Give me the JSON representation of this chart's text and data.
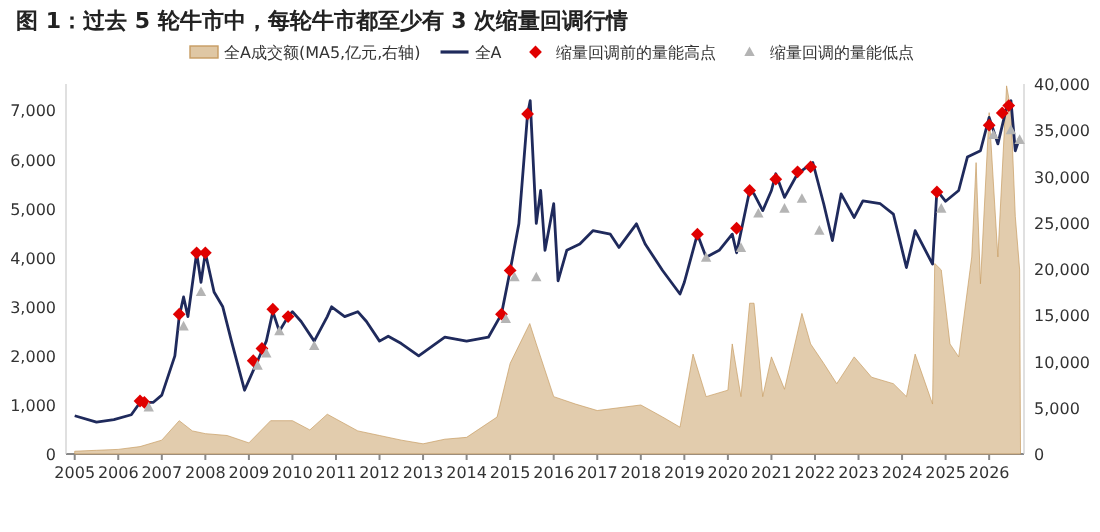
{
  "chart_data": {
    "type": "line",
    "title": "图 1：过去 5 轮牛市中，每轮牛市都至少有 3 次缩量回调行情",
    "legend": "top",
    "xlim": [
      2004.8,
      2026.8
    ],
    "xticks": [
      2005,
      2006,
      2007,
      2008,
      2009,
      2010,
      2011,
      2012,
      2013,
      2014,
      2015,
      2016,
      2017,
      2018,
      2019,
      2020,
      2021,
      2022,
      2023,
      2024,
      2025,
      2026
    ],
    "ylim": [
      0,
      7540
    ],
    "yticks": [
      0,
      {
        "value": 1000,
        "label": "1,000"
      },
      {
        "value": 2000,
        "label": "2,000"
      },
      {
        "value": 3000,
        "label": "3,000"
      },
      {
        "value": 4000,
        "label": "4,000"
      },
      {
        "value": 5000,
        "label": "5,000"
      },
      {
        "value": 6000,
        "label": "6,000"
      },
      {
        "value": 7000,
        "label": "7,000"
      }
    ],
    "y2lim": [
      0,
      40000
    ],
    "y2ticks": [
      0,
      {
        "value": 5000,
        "label": "5,000"
      },
      {
        "value": 10000,
        "label": "10,000"
      },
      {
        "value": 15000,
        "label": "15,000"
      },
      {
        "value": 20000,
        "label": "20,000"
      },
      {
        "value": 25000,
        "label": "25,000"
      },
      {
        "value": 30000,
        "label": "30,000"
      },
      {
        "value": 35000,
        "label": "35,000"
      },
      {
        "value": 40000,
        "label": "40,000"
      }
    ],
    "series": [
      {
        "name": "全A成交额(MA5,亿元,右轴)",
        "type": "area",
        "axis": "y2",
        "color": "#dfc7a4",
        "x": [
          2005.0,
          2005.5,
          2006.0,
          2006.5,
          2007.0,
          2007.4,
          2007.7,
          2008.0,
          2008.5,
          2009.0,
          2009.5,
          2010.0,
          2010.4,
          2010.8,
          2011.5,
          2012.0,
          2012.5,
          2013.0,
          2013.5,
          2014.0,
          2014.7,
          2015.0,
          2015.45,
          2015.6,
          2016.0,
          2016.5,
          2017.0,
          2017.5,
          2018.0,
          2018.5,
          2018.9,
          2019.2,
          2019.5,
          2020.0,
          2020.1,
          2020.3,
          2020.5,
          2020.6,
          2020.8,
          2021.0,
          2021.3,
          2021.7,
          2021.9,
          2022.2,
          2022.5,
          2022.9,
          2023.3,
          2023.8,
          2024.1,
          2024.3,
          2024.7,
          2024.75,
          2024.9,
          2025.1,
          2025.3,
          2025.6,
          2025.7,
          2025.8,
          2026.0,
          2026.2,
          2026.4,
          2026.5,
          2026.6,
          2026.7,
          2026.72
        ],
        "values": [
          300,
          400,
          500,
          800,
          1500,
          3600,
          2500,
          2200,
          2000,
          1200,
          3600,
          3600,
          2600,
          4300,
          2500,
          2000,
          1500,
          1100,
          1600,
          1800,
          4000,
          9800,
          14100,
          11900,
          6200,
          5400,
          4700,
          5000,
          5300,
          4000,
          2900,
          10800,
          6200,
          6900,
          11900,
          6200,
          16300,
          16300,
          6200,
          10500,
          7000,
          15200,
          11900,
          9800,
          7600,
          10500,
          8300,
          7600,
          6200,
          10800,
          5400,
          20600,
          19900,
          11900,
          10500,
          21300,
          31500,
          18400,
          36900,
          21300,
          39800,
          37200,
          25700,
          19900,
          0
        ]
      },
      {
        "name": "全A",
        "type": "line",
        "color": "#1f2a5c",
        "x": [
          2005.0,
          2005.5,
          2005.9,
          2006.3,
          2006.5,
          2006.8,
          2007.0,
          2007.3,
          2007.4,
          2007.5,
          2007.6,
          2007.8,
          2007.9,
          2008.0,
          2008.2,
          2008.4,
          2008.6,
          2008.9,
          2009.0,
          2009.2,
          2009.4,
          2009.55,
          2009.7,
          2009.9,
          2010.0,
          2010.2,
          2010.5,
          2010.8,
          2010.9,
          2011.2,
          2011.5,
          2011.7,
          2012.0,
          2012.2,
          2012.5,
          2012.9,
          2013.5,
          2014.0,
          2014.5,
          2014.8,
          2015.0,
          2015.2,
          2015.4,
          2015.46,
          2015.6,
          2015.7,
          2015.8,
          2016.0,
          2016.1,
          2016.3,
          2016.6,
          2016.9,
          2017.3,
          2017.5,
          2017.9,
          2018.1,
          2018.5,
          2018.9,
          2019.0,
          2019.3,
          2019.5,
          2019.8,
          2020.1,
          2020.2,
          2020.5,
          2020.6,
          2020.8,
          2021.0,
          2021.1,
          2021.3,
          2021.6,
          2021.8,
          2021.95,
          2022.2,
          2022.4,
          2022.6,
          2022.9,
          2023.1,
          2023.5,
          2023.8,
          2024.1,
          2024.3,
          2024.7,
          2024.8,
          2025.0,
          2025.3,
          2025.5,
          2025.8,
          2026.0,
          2026.2,
          2026.4,
          2026.5,
          2026.6,
          2026.7
        ],
        "values": [
          780,
          650,
          700,
          800,
          1050,
          1050,
          1200,
          2000,
          2800,
          3200,
          2800,
          4100,
          3500,
          4100,
          3300,
          3000,
          2300,
          1300,
          1500,
          1900,
          2300,
          2900,
          2500,
          2800,
          2900,
          2700,
          2300,
          2800,
          3000,
          2800,
          2900,
          2700,
          2300,
          2400,
          2250,
          2000,
          2380,
          2300,
          2380,
          2850,
          3740,
          4690,
          6930,
          7200,
          4700,
          5370,
          4150,
          5100,
          3530,
          4150,
          4280,
          4550,
          4480,
          4210,
          4690,
          4280,
          3740,
          3260,
          3500,
          4480,
          4010,
          4150,
          4480,
          4100,
          5370,
          5300,
          4960,
          5370,
          5710,
          5230,
          5710,
          5840,
          5940,
          5100,
          4350,
          5300,
          4820,
          5160,
          5100,
          4890,
          3800,
          4550,
          3870,
          5370,
          5150,
          5370,
          6050,
          6180,
          6860,
          6320,
          7060,
          7200,
          6180,
          6450
        ]
      },
      {
        "name": "缩量回调前的量能高点",
        "type": "scatter",
        "marker": "diamond",
        "color": "#e00000",
        "x": [
          2006.5,
          2006.6,
          2007.4,
          2007.8,
          2008.0,
          2009.1,
          2009.3,
          2009.55,
          2009.9,
          2014.8,
          2015.0,
          2015.4,
          2019.3,
          2020.2,
          2020.5,
          2021.1,
          2021.6,
          2021.9,
          2024.8,
          2026.0,
          2026.3,
          2026.45
        ],
        "values": [
          1080,
          1050,
          2850,
          4100,
          4100,
          1900,
          2150,
          2950,
          2800,
          2850,
          3740,
          6930,
          4480,
          4600,
          5370,
          5600,
          5750,
          5850,
          5340,
          6700,
          6950,
          7100
        ]
      },
      {
        "name": "缩量回调的量能低点",
        "type": "scatter",
        "marker": "triangle",
        "color": "#b4b4b4",
        "x": [
          2006.7,
          2007.5,
          2007.9,
          2009.2,
          2009.4,
          2009.7,
          2010.5,
          2014.9,
          2015.1,
          2015.6,
          2019.5,
          2020.3,
          2020.7,
          2021.3,
          2021.7,
          2022.1,
          2024.9,
          2026.1,
          2026.5,
          2026.7
        ],
        "values": [
          950,
          2600,
          3300,
          1800,
          2050,
          2500,
          2200,
          2750,
          3600,
          3600,
          4000,
          4200,
          4900,
          5000,
          5200,
          4550,
          5000,
          6500,
          6600,
          6400
        ]
      }
    ]
  }
}
